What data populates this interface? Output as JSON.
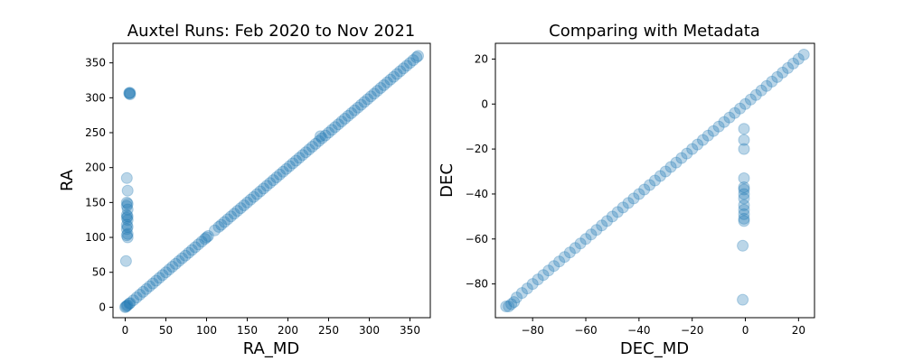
{
  "chart_data": [
    {
      "type": "scatter",
      "title": "Auxtel Runs: Feb 2020 to Nov 2021",
      "xlabel": "RA_MD",
      "ylabel": "RA",
      "xlim": [
        -15,
        375
      ],
      "ylim": [
        -15,
        378
      ],
      "xticks": [
        "0",
        "50",
        "100",
        "150",
        "200",
        "250",
        "300",
        "350"
      ],
      "yticks": [
        "0",
        "50",
        "100",
        "150",
        "200",
        "250",
        "300",
        "350"
      ],
      "color": "#1f77b4",
      "marker_alpha": 0.3,
      "grid": false,
      "diagonal_range": [
        0,
        360
      ],
      "points": [
        [
          5,
          307
        ],
        [
          6,
          307
        ],
        [
          5,
          306
        ],
        [
          6,
          305
        ],
        [
          2,
          185
        ],
        [
          3,
          167
        ],
        [
          2,
          150
        ],
        [
          3,
          148
        ],
        [
          2,
          145
        ],
        [
          3,
          140
        ],
        [
          2,
          132
        ],
        [
          3,
          130
        ],
        [
          2,
          128
        ],
        [
          3,
          125
        ],
        [
          2,
          118
        ],
        [
          3,
          115
        ],
        [
          2,
          112
        ],
        [
          3,
          105
        ],
        [
          2,
          103
        ],
        [
          3,
          100
        ],
        [
          1,
          66
        ],
        [
          0,
          0
        ],
        [
          1,
          1
        ],
        [
          2,
          2
        ],
        [
          3,
          3
        ],
        [
          5,
          5
        ],
        [
          6,
          6
        ],
        [
          10,
          10
        ],
        [
          14,
          14
        ],
        [
          18,
          18
        ],
        [
          22,
          22
        ],
        [
          26,
          26
        ],
        [
          30,
          30
        ],
        [
          34,
          34
        ],
        [
          38,
          38
        ],
        [
          42,
          42
        ],
        [
          46,
          46
        ],
        [
          50,
          50
        ],
        [
          54,
          54
        ],
        [
          58,
          58
        ],
        [
          62,
          62
        ],
        [
          66,
          66
        ],
        [
          70,
          70
        ],
        [
          74,
          74
        ],
        [
          78,
          78
        ],
        [
          82,
          82
        ],
        [
          86,
          86
        ],
        [
          90,
          90
        ],
        [
          94,
          94
        ],
        [
          98,
          98
        ],
        [
          100,
          100
        ],
        [
          102,
          102
        ],
        [
          110,
          110
        ],
        [
          115,
          115
        ],
        [
          118,
          118
        ],
        [
          122,
          122
        ],
        [
          126,
          126
        ],
        [
          130,
          130
        ],
        [
          134,
          134
        ],
        [
          138,
          138
        ],
        [
          142,
          142
        ],
        [
          146,
          146
        ],
        [
          150,
          150
        ],
        [
          154,
          154
        ],
        [
          158,
          158
        ],
        [
          162,
          162
        ],
        [
          166,
          166
        ],
        [
          170,
          170
        ],
        [
          174,
          174
        ],
        [
          178,
          178
        ],
        [
          182,
          182
        ],
        [
          186,
          186
        ],
        [
          190,
          190
        ],
        [
          194,
          194
        ],
        [
          198,
          198
        ],
        [
          202,
          202
        ],
        [
          206,
          206
        ],
        [
          210,
          210
        ],
        [
          214,
          214
        ],
        [
          218,
          218
        ],
        [
          222,
          222
        ],
        [
          226,
          226
        ],
        [
          230,
          230
        ],
        [
          234,
          234
        ],
        [
          238,
          238
        ],
        [
          240,
          245
        ],
        [
          242,
          242
        ],
        [
          246,
          246
        ],
        [
          250,
          250
        ],
        [
          254,
          254
        ],
        [
          258,
          258
        ],
        [
          262,
          262
        ],
        [
          266,
          266
        ],
        [
          270,
          270
        ],
        [
          274,
          274
        ],
        [
          278,
          278
        ],
        [
          282,
          282
        ],
        [
          286,
          286
        ],
        [
          290,
          290
        ],
        [
          294,
          294
        ],
        [
          298,
          298
        ],
        [
          302,
          302
        ],
        [
          306,
          306
        ],
        [
          310,
          310
        ],
        [
          314,
          314
        ],
        [
          318,
          318
        ],
        [
          322,
          322
        ],
        [
          326,
          326
        ],
        [
          330,
          330
        ],
        [
          334,
          334
        ],
        [
          338,
          338
        ],
        [
          342,
          342
        ],
        [
          346,
          346
        ],
        [
          350,
          350
        ],
        [
          354,
          354
        ],
        [
          358,
          358
        ],
        [
          360,
          360
        ]
      ]
    },
    {
      "type": "scatter",
      "title": "Comparing with Metadata",
      "xlabel": "DEC_MD",
      "ylabel": "DEC",
      "xlim": [
        -94,
        26
      ],
      "ylim": [
        -95,
        27
      ],
      "xticks": [
        "−80",
        "−60",
        "−40",
        "−20",
        "0",
        "20"
      ],
      "yticks": [
        "−80",
        "−60",
        "−40",
        "−20",
        "0",
        "20"
      ],
      "color": "#1f77b4",
      "marker_alpha": 0.3,
      "grid": false,
      "diagonal_range": [
        -90,
        22
      ],
      "points": [
        [
          -0.5,
          -11
        ],
        [
          -0.5,
          -16
        ],
        [
          -0.5,
          -20
        ],
        [
          -0.5,
          -33
        ],
        [
          -0.5,
          -37
        ],
        [
          -0.5,
          -38
        ],
        [
          -0.5,
          -40
        ],
        [
          -0.5,
          -42
        ],
        [
          -0.5,
          -45
        ],
        [
          -0.5,
          -47
        ],
        [
          -0.5,
          -49
        ],
        [
          -0.5,
          -51
        ],
        [
          -0.5,
          -52
        ],
        [
          -1,
          -63
        ],
        [
          -1,
          -87
        ],
        [
          -90,
          -90
        ],
        [
          -89,
          -90
        ],
        [
          -88,
          -89
        ],
        [
          -87,
          -88
        ],
        [
          -86,
          -86
        ],
        [
          -84,
          -84
        ],
        [
          -82,
          -82
        ],
        [
          -80,
          -80
        ],
        [
          -78,
          -78
        ],
        [
          -76,
          -76
        ],
        [
          -74,
          -74
        ],
        [
          -72,
          -72
        ],
        [
          -70,
          -70
        ],
        [
          -68,
          -68
        ],
        [
          -66,
          -66
        ],
        [
          -64,
          -64
        ],
        [
          -62,
          -62
        ],
        [
          -60,
          -60
        ],
        [
          -58,
          -58
        ],
        [
          -56,
          -56
        ],
        [
          -54,
          -54
        ],
        [
          -52,
          -52
        ],
        [
          -50,
          -50
        ],
        [
          -48,
          -48
        ],
        [
          -46,
          -46
        ],
        [
          -44,
          -44
        ],
        [
          -42,
          -42
        ],
        [
          -40,
          -40
        ],
        [
          -38,
          -38
        ],
        [
          -36,
          -36
        ],
        [
          -34,
          -34
        ],
        [
          -32,
          -32
        ],
        [
          -30,
          -30
        ],
        [
          -28,
          -28
        ],
        [
          -26,
          -26
        ],
        [
          -24,
          -24
        ],
        [
          -22,
          -22
        ],
        [
          -20,
          -20
        ],
        [
          -18,
          -18
        ],
        [
          -16,
          -16
        ],
        [
          -14,
          -14
        ],
        [
          -12,
          -12
        ],
        [
          -10,
          -10
        ],
        [
          -8,
          -8
        ],
        [
          -6,
          -6
        ],
        [
          -4,
          -4
        ],
        [
          -2,
          -2
        ],
        [
          0,
          0
        ],
        [
          2,
          2
        ],
        [
          4,
          4
        ],
        [
          6,
          6
        ],
        [
          8,
          8
        ],
        [
          10,
          10
        ],
        [
          12,
          12
        ],
        [
          14,
          14
        ],
        [
          16,
          16
        ],
        [
          18,
          18
        ],
        [
          20,
          20
        ],
        [
          22,
          22
        ]
      ]
    }
  ]
}
